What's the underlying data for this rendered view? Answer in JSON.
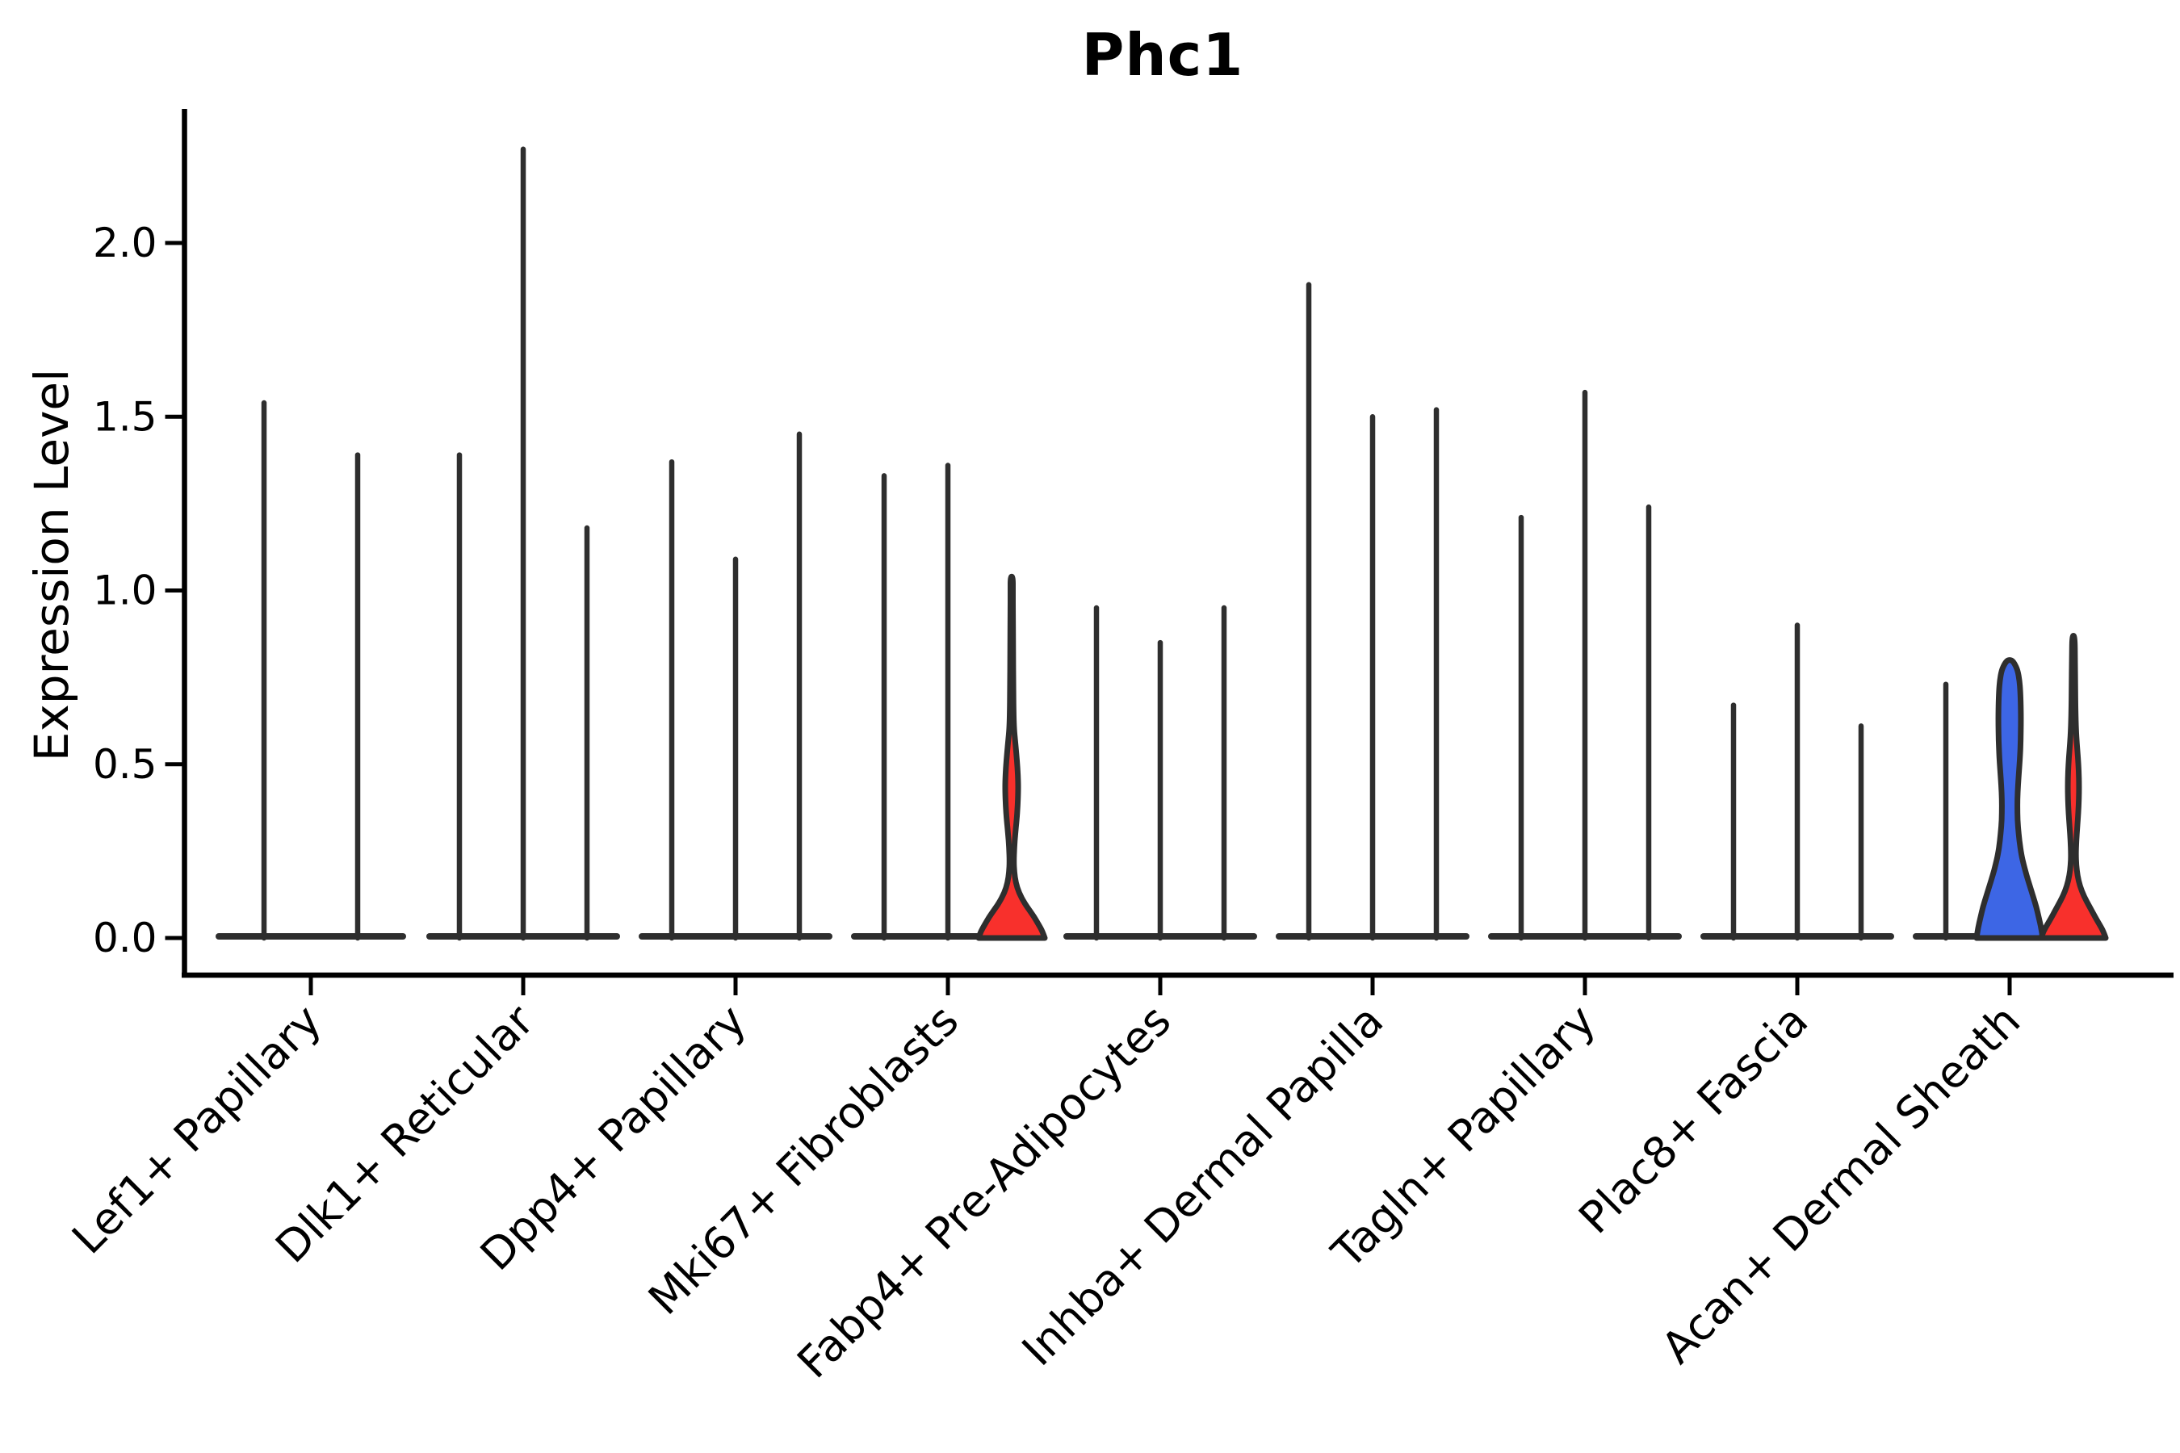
{
  "title": "Phc1",
  "ylabel": "Expression Level",
  "colors": {
    "background": "#FFFFFF",
    "outline": "#2E2E2E",
    "axis": "#000000",
    "blue_fill": "#3D66E5",
    "red_fill": "#F8302C"
  },
  "chart_data": {
    "type": "violin",
    "title": "Phc1",
    "xlabel": "",
    "ylabel": "Expression Level",
    "ylim": [
      0,
      2.35
    ],
    "yticks": [
      0.0,
      0.5,
      1.0,
      1.5,
      2.0
    ],
    "ytick_labels": [
      "0.0",
      "0.5",
      "1.0",
      "1.5",
      "2.0"
    ],
    "grid": false,
    "legend_position": "none",
    "categories": [
      "Lef1+ Papillary",
      "Dlk1+ Reticular",
      "Dpp4+ Papillary",
      "Mki67+ Fibroblasts",
      "Fabp4+ Pre-Adipocytes",
      "Inhba+ Dermal Papilla",
      "Tagln+ Papillary",
      "Plac8+ Fascia",
      "Acan+ Dermal Sheath"
    ],
    "groups": [
      {
        "category": "Lef1+ Papillary",
        "violins": [
          {
            "max": 1.54,
            "shape": "spike",
            "fill": null
          },
          {
            "max": 1.39,
            "shape": "spike",
            "fill": null
          }
        ]
      },
      {
        "category": "Dlk1+ Reticular",
        "violins": [
          {
            "max": 1.39,
            "shape": "spike",
            "fill": null
          },
          {
            "max": 2.27,
            "shape": "spike",
            "fill": null
          },
          {
            "max": 1.18,
            "shape": "spike",
            "fill": null
          }
        ]
      },
      {
        "category": "Dpp4+ Papillary",
        "violins": [
          {
            "max": 1.37,
            "shape": "spike",
            "fill": null
          },
          {
            "max": 1.09,
            "shape": "spike",
            "fill": null
          },
          {
            "max": 1.45,
            "shape": "spike",
            "fill": null
          }
        ]
      },
      {
        "category": "Mki67+ Fibroblasts",
        "violins": [
          {
            "max": 1.33,
            "shape": "spike",
            "fill": null
          },
          {
            "max": 1.36,
            "shape": "spike",
            "fill": null
          },
          {
            "max": 1.04,
            "shape": "violin",
            "fill": "red_fill",
            "profile": [
              [
                0.0,
                41
              ],
              [
                0.02,
                38
              ],
              [
                0.04,
                33
              ],
              [
                0.06,
                28
              ],
              [
                0.08,
                22
              ],
              [
                0.1,
                16
              ],
              [
                0.13,
                9
              ],
              [
                0.16,
                5
              ],
              [
                0.19,
                3.2
              ],
              [
                0.22,
                2.6
              ],
              [
                0.26,
                3.2
              ],
              [
                0.3,
                4.5
              ],
              [
                0.34,
                6.2
              ],
              [
                0.38,
                7.4
              ],
              [
                0.42,
                8.0
              ],
              [
                0.45,
                8.0
              ],
              [
                0.49,
                7.2
              ],
              [
                0.53,
                5.8
              ],
              [
                0.57,
                4.2
              ],
              [
                0.6,
                3.0
              ],
              [
                0.64,
                2.4
              ],
              [
                0.72,
                2.0
              ],
              [
                0.82,
                1.8
              ],
              [
                0.93,
                1.6
              ],
              [
                1.0,
                1.5
              ],
              [
                1.04,
                1.4
              ]
            ]
          }
        ]
      },
      {
        "category": "Fabp4+ Pre-Adipocytes",
        "violins": [
          {
            "max": 0.95,
            "shape": "spike",
            "fill": null
          },
          {
            "max": 0.85,
            "shape": "spike",
            "fill": null
          },
          {
            "max": 0.95,
            "shape": "spike",
            "fill": null
          }
        ]
      },
      {
        "category": "Inhba+ Dermal Papilla",
        "violins": [
          {
            "max": 1.88,
            "shape": "spike",
            "fill": null
          },
          {
            "max": 1.5,
            "shape": "spike",
            "fill": null
          },
          {
            "max": 1.52,
            "shape": "spike",
            "fill": null
          }
        ]
      },
      {
        "category": "Tagln+ Papillary",
        "violins": [
          {
            "max": 1.21,
            "shape": "spike",
            "fill": null
          },
          {
            "max": 1.57,
            "shape": "spike",
            "fill": null
          },
          {
            "max": 1.24,
            "shape": "spike",
            "fill": null
          }
        ]
      },
      {
        "category": "Plac8+ Fascia",
        "violins": [
          {
            "max": 0.67,
            "shape": "spike",
            "fill": null
          },
          {
            "max": 0.9,
            "shape": "spike",
            "fill": null
          },
          {
            "max": 0.61,
            "shape": "spike",
            "fill": null
          }
        ]
      },
      {
        "category": "Acan+ Dermal Sheath",
        "violins": [
          {
            "max": 0.73,
            "shape": "spike",
            "fill": null
          },
          {
            "max": 0.8,
            "shape": "violin",
            "fill": "blue_fill",
            "profile": [
              [
                0.0,
                41
              ],
              [
                0.03,
                39
              ],
              [
                0.06,
                36
              ],
              [
                0.09,
                33
              ],
              [
                0.12,
                29
              ],
              [
                0.15,
                25
              ],
              [
                0.18,
                21
              ],
              [
                0.21,
                17.5
              ],
              [
                0.24,
                14.5
              ],
              [
                0.28,
                12
              ],
              [
                0.32,
                10.3
              ],
              [
                0.36,
                9.6
              ],
              [
                0.4,
                9.6
              ],
              [
                0.44,
                10.4
              ],
              [
                0.48,
                11.6
              ],
              [
                0.52,
                12.8
              ],
              [
                0.57,
                13.7
              ],
              [
                0.62,
                14.0
              ],
              [
                0.67,
                13.8
              ],
              [
                0.71,
                13.2
              ],
              [
                0.74,
                12.2
              ],
              [
                0.77,
                10.0
              ],
              [
                0.79,
                6.0
              ],
              [
                0.8,
                2.5
              ]
            ]
          },
          {
            "max": 0.87,
            "shape": "violin",
            "fill": "red_fill",
            "profile": [
              [
                0.0,
                40
              ],
              [
                0.02,
                37
              ],
              [
                0.04,
                32
              ],
              [
                0.06,
                27
              ],
              [
                0.09,
                20
              ],
              [
                0.12,
                13
              ],
              [
                0.15,
                8
              ],
              [
                0.18,
                5
              ],
              [
                0.21,
                3.5
              ],
              [
                0.24,
                3.0
              ],
              [
                0.28,
                3.6
              ],
              [
                0.32,
                4.8
              ],
              [
                0.36,
                6.0
              ],
              [
                0.4,
                6.8
              ],
              [
                0.44,
                7.0
              ],
              [
                0.48,
                6.6
              ],
              [
                0.52,
                5.6
              ],
              [
                0.56,
                4.2
              ],
              [
                0.6,
                3.2
              ],
              [
                0.65,
                2.6
              ],
              [
                0.72,
                2.2
              ],
              [
                0.8,
                1.9
              ],
              [
                0.87,
                1.6
              ]
            ]
          }
        ]
      }
    ]
  }
}
